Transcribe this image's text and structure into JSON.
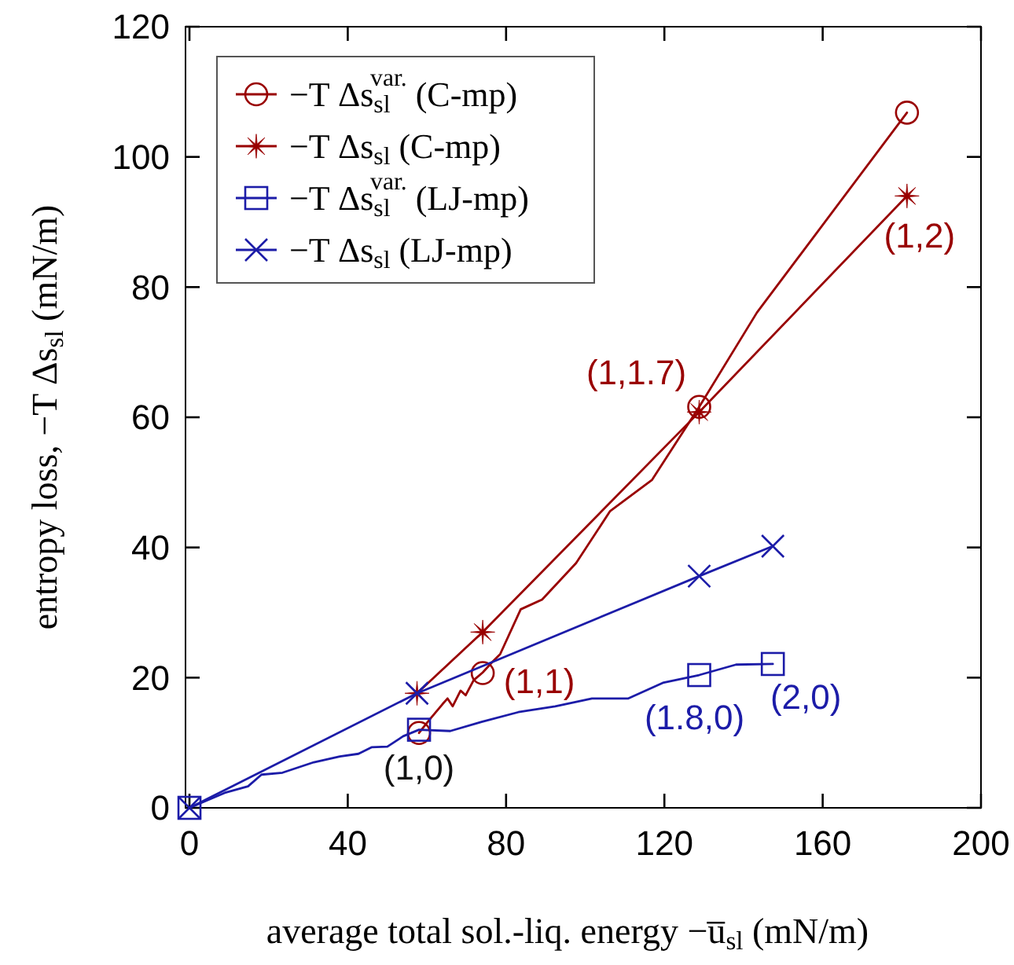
{
  "chart_data": {
    "type": "line",
    "xlabel": "average total sol.-liq. energy −u̅$_{sl}$ (mN/m)",
    "ylabel": "entropy loss, −T Δs$_{sl}$ (mN/m)",
    "xlim": [
      -1,
      200
    ],
    "xticks": [
      0,
      40,
      80,
      120,
      160,
      200
    ],
    "ylim": [
      0,
      120
    ],
    "yticks": [
      0,
      20,
      40,
      60,
      80,
      100,
      120
    ],
    "grid": false,
    "legend": "top left",
    "line_style": "solid",
    "series": [
      {
        "name": "−T Δs$_{sl}$$^{var.}$ (C-mp)",
        "type": "scatter",
        "color": "#990000",
        "marker": "circle",
        "x": [
          58,
          74.1,
          128.8,
          181.3
        ],
        "values": [
          11.5,
          20.7,
          61.6,
          106.8
        ]
      },
      {
        "name": "−T Δs$_{sl}$ (C-mp)",
        "color": "#990000",
        "marker": "star",
        "x": [
          57.5,
          74.1,
          128.8,
          181.3
        ],
        "values": [
          17.6,
          27.0,
          60.8,
          94.0
        ]
      },
      {
        "name": "−T Δs$_{sl}$$^{var.}$ (LJ-mp)",
        "type": "scatter",
        "color": "#1c1ca8",
        "marker": "square",
        "x": [
          0,
          58,
          128.8,
          147.4
        ],
        "values": [
          0,
          12,
          20.4,
          22.1
        ]
      },
      {
        "name": "−T Δs$_{sl}$ (LJ-mp)",
        "color": "#1c1ca8",
        "marker": "cross",
        "x": [
          0,
          57.5,
          128.8,
          147.4
        ],
        "values": [
          0,
          17.6,
          35.6,
          40.2
        ]
      },
      {
        "color": "#990000",
        "marker": "none",
        "x": [
          58,
          60.6,
          63.9,
          65.2,
          66.5,
          68.5,
          69.8,
          71.8,
          74.1,
          76.5,
          78.5,
          83.7,
          89.1,
          97.7,
          106.3,
          116.9,
          128.8,
          143.4,
          181.3
        ],
        "values": [
          11.5,
          13.5,
          15.9,
          16.8,
          15.6,
          18.0,
          17.3,
          19.6,
          20.8,
          22.4,
          23.6,
          30.5,
          32.0,
          37.6,
          45.6,
          50.4,
          61.6,
          76.1,
          106.8
        ]
      },
      {
        "color": "#1c1ca8",
        "marker": "none",
        "x": [
          0,
          8.9,
          14.8,
          18.2,
          23.5,
          31.4,
          38.0,
          42.7,
          46.0,
          50.0,
          54.0,
          58,
          65.9,
          73.8,
          83.1,
          92.4,
          101.7,
          110.9,
          119.6,
          128.8,
          138.1,
          147.4
        ],
        "values": [
          0,
          2.3,
          3.3,
          5.1,
          5.4,
          7.0,
          7.9,
          8.3,
          9.3,
          9.4,
          11.0,
          12,
          11.8,
          13.2,
          14.7,
          15.6,
          16.8,
          16.8,
          19.2,
          20.4,
          22.0,
          22.1
        ]
      }
    ],
    "annotations": [
      {
        "text": "(1,2)",
        "x": 181.3,
        "y": 94.0
      },
      {
        "text": "(1,1.7)",
        "x": 128.8,
        "y": 61.6
      },
      {
        "text": "(1,1)",
        "x": 74.1,
        "y": 20.7
      },
      {
        "text": "(1,0)",
        "x": 58,
        "y": 12
      },
      {
        "text": "(1.8,0)",
        "x": 128.8,
        "y": 20.4
      },
      {
        "text": "(2,0)",
        "x": 147.4,
        "y": 22.1
      }
    ]
  }
}
